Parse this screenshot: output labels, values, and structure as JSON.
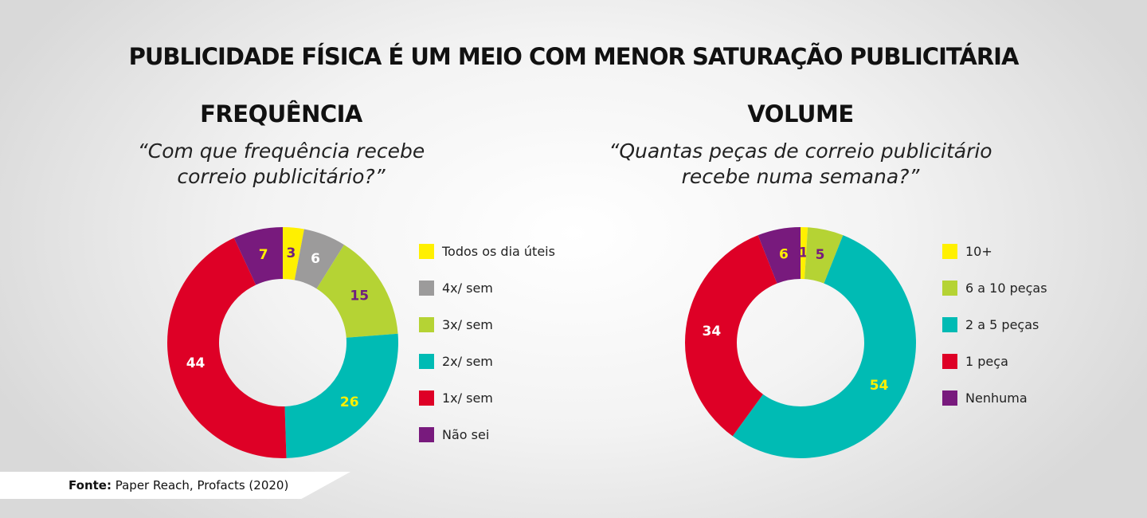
{
  "title": "PUBLICIDADE FÍSICA É UM MEIO COM MENOR SATURAÇÃO PUBLICITÁRIA",
  "source": {
    "prefix": "Fonte:",
    "text": " Paper Reach, Profacts (2020)"
  },
  "charts": [
    {
      "title": "FREQUÊNCIA",
      "question_line1": "“Com que frequência recebe",
      "question_line2": "correio publicitário?”"
    },
    {
      "title": "VOLUME",
      "question_line1": "“Quantas peças de correio publicitário",
      "question_line2": "recebe numa semana?”"
    }
  ],
  "chart_data": [
    {
      "type": "pie",
      "title": "FREQUÊNCIA",
      "subtitle": "“Com que frequência recebe correio publicitário?”",
      "donut": true,
      "legend_position": "right",
      "series": [
        {
          "name": "Todos os dia úteis",
          "value": 3,
          "color": "#FFF000",
          "label_color": "#6E1F7E"
        },
        {
          "name": "4x/ sem",
          "value": 6,
          "color": "#9C9B9B",
          "label_color": "#ffffff"
        },
        {
          "name": "3x/ sem",
          "value": 15,
          "color": "#B5D334",
          "label_color": "#6E1F7E"
        },
        {
          "name": "2x/ sem",
          "value": 26,
          "color": "#00BBB4",
          "label_color": "#FFF000"
        },
        {
          "name": "1x/ sem",
          "value": 44,
          "color": "#DE0026",
          "label_color": "#ffffff"
        },
        {
          "name": "Não sei",
          "value": 7,
          "color": "#781A7D",
          "label_color": "#FFF000"
        }
      ]
    },
    {
      "type": "pie",
      "title": "VOLUME",
      "subtitle": "“Quantas peças de correio publicitário recebe numa semana?”",
      "donut": true,
      "legend_position": "right",
      "series": [
        {
          "name": "10+",
          "value": 1,
          "color": "#FFF000",
          "label_color": "#781A7D"
        },
        {
          "name": "6 a 10 peças",
          "value": 5,
          "color": "#B5D334",
          "label_color": "#781A7D"
        },
        {
          "name": "2 a 5 peças",
          "value": 54,
          "color": "#00BBB4",
          "label_color": "#FFF000"
        },
        {
          "name": "1 peça",
          "value": 34,
          "color": "#DE0026",
          "label_color": "#ffffff"
        },
        {
          "name": "Nenhuma",
          "value": 6,
          "color": "#781A7D",
          "label_color": "#FFF000"
        }
      ]
    }
  ]
}
